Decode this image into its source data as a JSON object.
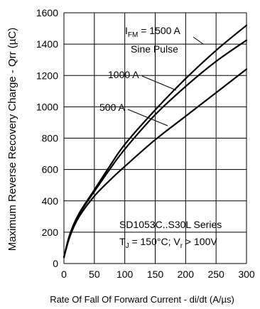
{
  "chart_data": {
    "type": "line",
    "xlabel": "Rate Of Fall Of Forward Current - di/dt (A/µs)",
    "ylabel": "Maximum Reverse Recovery Charge - Qrr (µC)",
    "xlim": [
      0,
      300
    ],
    "ylim": [
      0,
      1600
    ],
    "x_ticks": [
      "0",
      "50",
      "100",
      "150",
      "200",
      "250",
      "300"
    ],
    "y_ticks": [
      "0",
      "200",
      "400",
      "600",
      "800",
      "1000",
      "1200",
      "1400",
      "1600"
    ],
    "grid": true,
    "series": [
      {
        "name": "1500 A",
        "x": [
          0,
          10,
          25,
          50,
          75,
          100,
          150,
          200,
          250,
          300
        ],
        "y": [
          40,
          190,
          320,
          470,
          620,
          760,
          980,
          1180,
          1360,
          1520
        ]
      },
      {
        "name": "1000 A",
        "x": [
          0,
          10,
          25,
          50,
          75,
          100,
          150,
          200,
          250,
          300
        ],
        "y": [
          40,
          185,
          315,
          460,
          600,
          730,
          950,
          1130,
          1290,
          1425
        ]
      },
      {
        "name": "500 A",
        "x": [
          0,
          10,
          25,
          50,
          75,
          100,
          150,
          200,
          250,
          300
        ],
        "y": [
          40,
          175,
          300,
          430,
          530,
          620,
          790,
          940,
          1090,
          1240
        ]
      }
    ],
    "annotations": {
      "ifm_main": "I",
      "ifm_sub": "FM",
      "ifm_rest": " = 1500 A",
      "sine_pulse": "Sine Pulse",
      "label_1000": "1000 A",
      "label_500": "500 A",
      "series_name": "SD1053C..S30L Series",
      "cond_t": "T",
      "cond_j": "J",
      "cond_mid": " = 150°C; V",
      "cond_r": "r",
      "cond_end": " > 100V"
    }
  }
}
